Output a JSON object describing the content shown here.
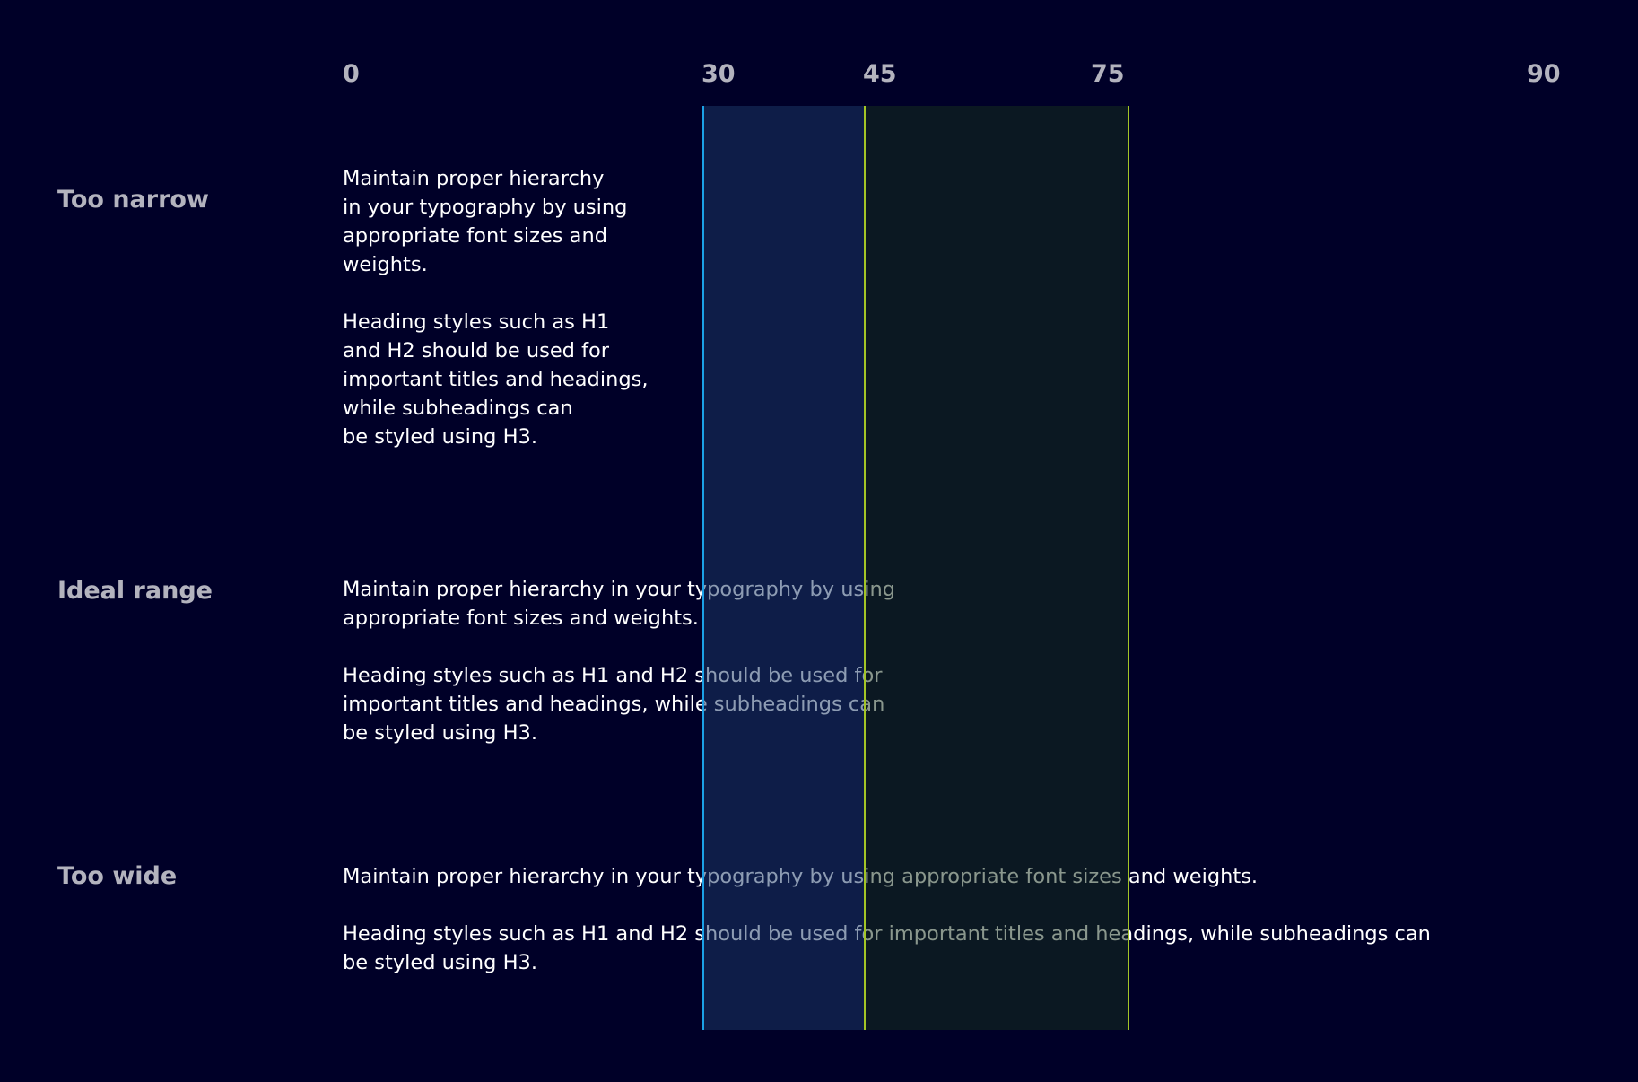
{
  "ruler": {
    "ticks": [
      "0",
      "30",
      "45",
      "75",
      "90"
    ]
  },
  "colors": {
    "background": "#000028",
    "band_30_45": "#0e1d48",
    "band_45_75": "#0b1822",
    "line_30": "#1ba1e6",
    "line_45_75": "#a3c526"
  },
  "rows": [
    {
      "label": "Too narrow",
      "p1": [
        "Maintain proper hierarchy",
        "in your typography by using",
        "appropriate font sizes and",
        "weights."
      ],
      "p2": [
        "Heading styles such as H1",
        "and H2 should be used for",
        "important titles and headings,",
        "while subheadings can",
        "be styled using H3."
      ]
    },
    {
      "label": "Ideal range",
      "p1": [
        "Maintain proper hierarchy in your typography by using",
        "appropriate font sizes and weights."
      ],
      "p2": [
        "Heading styles such as H1 and H2 should be used for",
        "important titles and headings, while subheadings can",
        "be styled using H3."
      ]
    },
    {
      "label": "Too wide",
      "p1": [
        "Maintain proper hierarchy in your typography by using appropriate font sizes and weights."
      ],
      "p2": [
        "Heading styles such as H1 and H2 should be used for important titles and headings, while subheadings can",
        "be styled using H3."
      ]
    }
  ]
}
